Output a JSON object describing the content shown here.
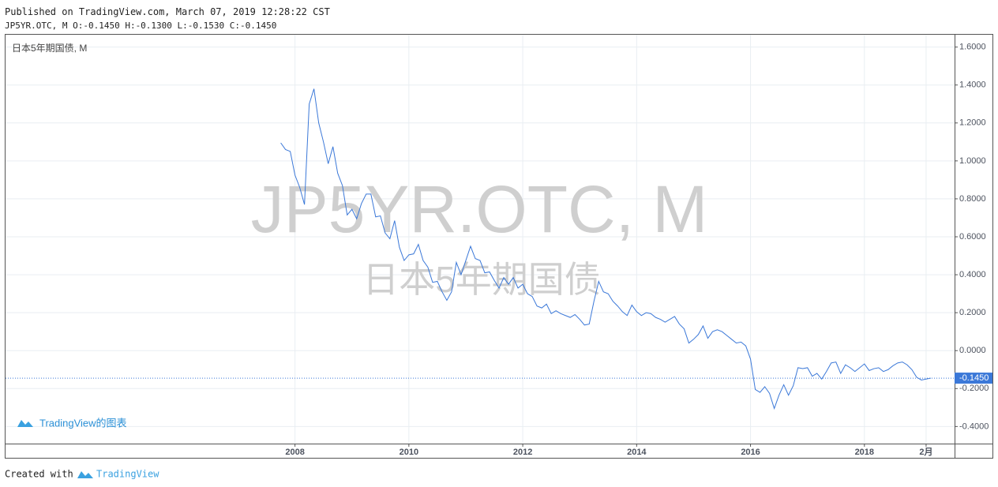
{
  "chart_data": {
    "type": "line",
    "published": "Published on TradingView.com, March 07, 2019 12:28:22 CST",
    "ohlc": "JP5YR.OTC, M O:-0.1450 H:-0.1300 L:-0.1530 C:-0.1450",
    "pane_label": "日本5年期国债, M",
    "watermark": "JP5YR.OTC, M",
    "watermark_subtitle": "日本5年期国债",
    "logo_text": "TradingView的图表",
    "footer_prefix": "Created with",
    "footer_brand": "TradingView",
    "color": "#3b78d8",
    "grid": true,
    "last_price": {
      "value": -0.145,
      "label": "-0.1450"
    },
    "x": [
      "2007-10",
      "2007-11",
      "2007-12",
      "2008-01",
      "2008-02",
      "2008-03",
      "2008-04",
      "2008-05",
      "2008-06",
      "2008-07",
      "2008-08",
      "2008-09",
      "2008-10",
      "2008-11",
      "2008-12",
      "2009-01",
      "2009-02",
      "2009-03",
      "2009-04",
      "2009-05",
      "2009-06",
      "2009-07",
      "2009-08",
      "2009-09",
      "2009-10",
      "2009-11",
      "2009-12",
      "2010-01",
      "2010-02",
      "2010-03",
      "2010-04",
      "2010-05",
      "2010-06",
      "2010-07",
      "2010-08",
      "2010-09",
      "2010-10",
      "2010-11",
      "2010-12",
      "2011-01",
      "2011-02",
      "2011-03",
      "2011-04",
      "2011-05",
      "2011-06",
      "2011-07",
      "2011-08",
      "2011-09",
      "2011-10",
      "2011-11",
      "2011-12",
      "2012-01",
      "2012-02",
      "2012-03",
      "2012-04",
      "2012-05",
      "2012-06",
      "2012-07",
      "2012-08",
      "2012-09",
      "2012-10",
      "2012-11",
      "2012-12",
      "2013-01",
      "2013-02",
      "2013-03",
      "2013-04",
      "2013-05",
      "2013-06",
      "2013-07",
      "2013-08",
      "2013-09",
      "2013-10",
      "2013-11",
      "2013-12",
      "2014-01",
      "2014-02",
      "2014-03",
      "2014-04",
      "2014-05",
      "2014-06",
      "2014-07",
      "2014-08",
      "2014-09",
      "2014-10",
      "2014-11",
      "2014-12",
      "2015-01",
      "2015-02",
      "2015-03",
      "2015-04",
      "2015-05",
      "2015-06",
      "2015-07",
      "2015-08",
      "2015-09",
      "2015-10",
      "2015-11",
      "2015-12",
      "2016-01",
      "2016-02",
      "2016-03",
      "2016-04",
      "2016-05",
      "2016-06",
      "2016-07",
      "2016-08",
      "2016-09",
      "2016-10",
      "2016-11",
      "2016-12",
      "2017-01",
      "2017-02",
      "2017-03",
      "2017-04",
      "2017-05",
      "2017-06",
      "2017-07",
      "2017-08",
      "2017-09",
      "2017-10",
      "2017-11",
      "2017-12",
      "2018-01",
      "2018-02",
      "2018-03",
      "2018-04",
      "2018-05",
      "2018-06",
      "2018-07",
      "2018-08",
      "2018-09",
      "2018-10",
      "2018-11",
      "2018-12",
      "2019-01",
      "2019-02",
      "2019-03"
    ],
    "values": [
      1.095,
      1.06,
      1.05,
      0.925,
      0.86,
      0.77,
      1.3,
      1.38,
      1.2,
      1.1,
      0.985,
      1.075,
      0.935,
      0.87,
      0.715,
      0.745,
      0.695,
      0.775,
      0.825,
      0.825,
      0.705,
      0.71,
      0.62,
      0.59,
      0.685,
      0.545,
      0.475,
      0.505,
      0.51,
      0.56,
      0.475,
      0.44,
      0.36,
      0.365,
      0.31,
      0.265,
      0.31,
      0.465,
      0.4,
      0.475,
      0.55,
      0.485,
      0.475,
      0.41,
      0.415,
      0.37,
      0.33,
      0.385,
      0.35,
      0.385,
      0.33,
      0.35,
      0.3,
      0.285,
      0.235,
      0.225,
      0.245,
      0.195,
      0.21,
      0.195,
      0.185,
      0.175,
      0.19,
      0.165,
      0.135,
      0.14,
      0.26,
      0.365,
      0.31,
      0.3,
      0.26,
      0.235,
      0.205,
      0.185,
      0.24,
      0.205,
      0.185,
      0.2,
      0.195,
      0.175,
      0.165,
      0.15,
      0.165,
      0.18,
      0.14,
      0.115,
      0.04,
      0.06,
      0.085,
      0.13,
      0.065,
      0.1,
      0.11,
      0.1,
      0.08,
      0.06,
      0.04,
      0.045,
      0.025,
      -0.045,
      -0.205,
      -0.22,
      -0.19,
      -0.225,
      -0.305,
      -0.235,
      -0.18,
      -0.235,
      -0.185,
      -0.09,
      -0.095,
      -0.09,
      -0.135,
      -0.12,
      -0.15,
      -0.11,
      -0.065,
      -0.06,
      -0.12,
      -0.075,
      -0.09,
      -0.11,
      -0.09,
      -0.07,
      -0.105,
      -0.095,
      -0.09,
      -0.11,
      -0.1,
      -0.08,
      -0.065,
      -0.06,
      -0.075,
      -0.1,
      -0.14,
      -0.155,
      -0.15,
      -0.145
    ],
    "xlim": [
      "2002-12",
      "2019-08"
    ],
    "xticks": [
      {
        "value": "2008-01",
        "label": "2008"
      },
      {
        "value": "2010-01",
        "label": "2010"
      },
      {
        "value": "2012-01",
        "label": "2012"
      },
      {
        "value": "2014-01",
        "label": "2014"
      },
      {
        "value": "2016-01",
        "label": "2016"
      },
      {
        "value": "2018-01",
        "label": "2018"
      },
      {
        "value": "2019-02",
        "label": "2月"
      }
    ],
    "ylim": [
      -0.49,
      1.665
    ],
    "yticks": [
      {
        "value": -0.4,
        "label": "-0.4000"
      },
      {
        "value": -0.2,
        "label": "-0.2000"
      },
      {
        "value": 0,
        "label": "0.0000"
      },
      {
        "value": 0.2,
        "label": "0.2000"
      },
      {
        "value": 0.4,
        "label": "0.4000"
      },
      {
        "value": 0.6,
        "label": "0.6000"
      },
      {
        "value": 0.8,
        "label": "0.8000"
      },
      {
        "value": 1.0,
        "label": "1.0000"
      },
      {
        "value": 1.2,
        "label": "1.2000"
      },
      {
        "value": 1.4,
        "label": "1.4000"
      },
      {
        "value": 1.6,
        "label": "1.6000"
      }
    ]
  }
}
